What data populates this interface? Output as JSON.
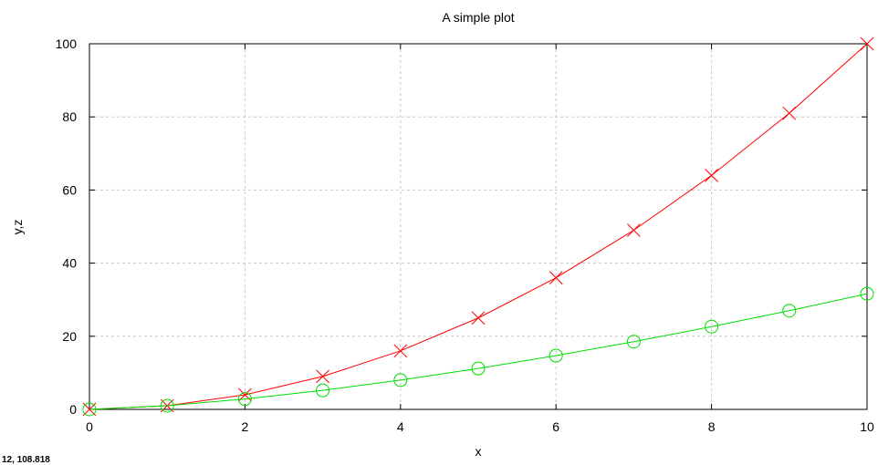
{
  "chart_data": {
    "type": "line",
    "title": "A simple plot",
    "xlabel": "x",
    "ylabel": "y,z",
    "xlim": [
      0,
      10
    ],
    "ylim": [
      0,
      100
    ],
    "xticks": [
      0,
      2,
      4,
      6,
      8,
      10
    ],
    "yticks": [
      0,
      20,
      40,
      60,
      80,
      100
    ],
    "grid": true,
    "legend": "none",
    "series": [
      {
        "color": "#ff0000",
        "marker": "x",
        "x": [
          0,
          1,
          2,
          3,
          4,
          5,
          6,
          7,
          8,
          9,
          10
        ],
        "values": [
          0,
          1,
          4,
          9,
          16,
          25,
          36,
          49,
          64,
          81,
          100
        ]
      },
      {
        "color": "#00dd00",
        "marker": "circle",
        "x": [
          0,
          1,
          2,
          3,
          4,
          5,
          6,
          7,
          8,
          9,
          10
        ],
        "values": [
          0,
          1,
          2.83,
          5.2,
          8,
          11.18,
          14.7,
          18.52,
          22.63,
          27,
          31.62
        ]
      }
    ]
  },
  "status_readout": "12, 108.818"
}
